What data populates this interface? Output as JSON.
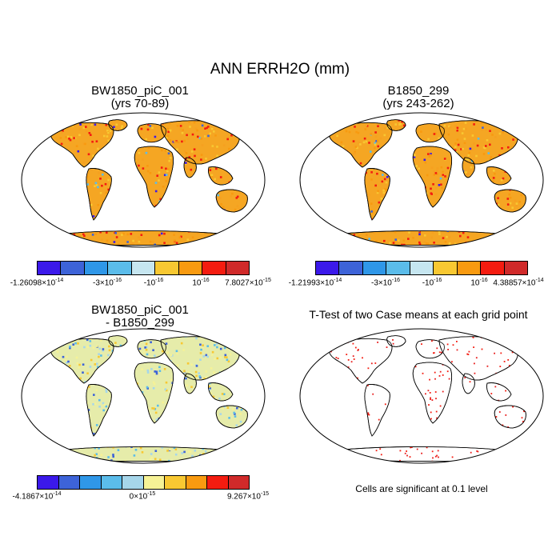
{
  "figure_title": "ANN ERRH2O (mm)",
  "panels": [
    {
      "title_line1": "BW1850_piC_001",
      "title_line2": "(yrs 70-89)",
      "colorbar": {
        "colors": [
          "#3b19ea",
          "#3d63d8",
          "#2f97e8",
          "#5bbcea",
          "#c6e6f0",
          "#f8c832",
          "#f89a10",
          "#f41c10",
          "#d02a2a"
        ],
        "labels": [
          "-1.26098×10^-14",
          "-3×10^-16",
          "-10^-16",
          "10^-16",
          "7.8027×10^-15"
        ]
      }
    },
    {
      "title_line1": "B1850_299",
      "title_line2": "(yrs 243-262)",
      "colorbar": {
        "colors": [
          "#3b19ea",
          "#3d63d8",
          "#2f97e8",
          "#5bbcea",
          "#c6e6f0",
          "#f8c832",
          "#f89a10",
          "#f41c10",
          "#d02a2a"
        ],
        "labels": [
          "-1.21993×10^-14",
          "-3×10^-16",
          "-10^-16",
          "10^-16",
          "4.38857×10^-14"
        ]
      }
    },
    {
      "title_line1": "BW1850_piC_001",
      "title_line2": "- B1850_299",
      "colorbar": {
        "colors": [
          "#3b19ea",
          "#3d63d8",
          "#2f97e8",
          "#5bbcea",
          "#a6d6ea",
          "#f6f296",
          "#f8c832",
          "#f89a10",
          "#f41c10",
          "#d02a2a"
        ],
        "labels": [
          "-4.1867×10^-14",
          "0×10^-15",
          "9.267×10^-15"
        ]
      }
    },
    {
      "title_line1": "T-Test of two Case means at each grid point",
      "footnote": "Cells are significant at 0.1 level"
    }
  ]
}
